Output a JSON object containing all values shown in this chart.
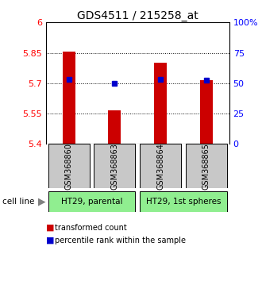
{
  "title": "GDS4511 / 215258_at",
  "samples": [
    "GSM368860",
    "GSM368863",
    "GSM368864",
    "GSM368865"
  ],
  "red_values": [
    5.855,
    5.565,
    5.8,
    5.715
  ],
  "blue_values": [
    5.72,
    5.7,
    5.72,
    5.715
  ],
  "y_min": 5.4,
  "y_max": 6.0,
  "y_ticks": [
    5.4,
    5.55,
    5.7,
    5.85,
    6.0
  ],
  "y_tick_labels": [
    "5.4",
    "5.55",
    "5.7",
    "5.85",
    "6"
  ],
  "right_y_ticks": [
    0,
    25,
    50,
    75,
    100
  ],
  "right_y_labels": [
    "0",
    "25",
    "50",
    "75",
    "100%"
  ],
  "cell_line_labels": [
    "HT29, parental",
    "HT29, 1st spheres"
  ],
  "cell_line_colors": [
    "#90ee90",
    "#90ee90"
  ],
  "cell_line_groups": [
    [
      0,
      1
    ],
    [
      2,
      3
    ]
  ],
  "bar_color": "#cc0000",
  "blue_color": "#0000cc",
  "sample_box_color": "#c8c8c8",
  "legend_red": "transformed count",
  "legend_blue": "percentile rank within the sample"
}
